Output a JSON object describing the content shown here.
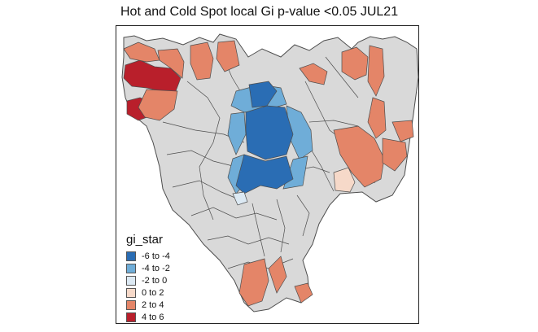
{
  "title": "Hot and Cold Spot local Gi p-value <0.05 JUL21",
  "legend": {
    "title": "gi_star",
    "items": [
      {
        "label": "-6 to -4",
        "color": "#2a6db4"
      },
      {
        "label": "-4 to -2",
        "color": "#6fadd8"
      },
      {
        "label": "-2 to 0",
        "color": "#dce9f3"
      },
      {
        "label": "0 to 2",
        "color": "#f6d9c9"
      },
      {
        "label": "2 to 4",
        "color": "#e48568"
      },
      {
        "label": "4 to 6",
        "color": "#b91f2b"
      }
    ]
  },
  "colors": {
    "base": "#d9d9d9",
    "border": "#4d4d4d",
    "frame": "#222222"
  }
}
